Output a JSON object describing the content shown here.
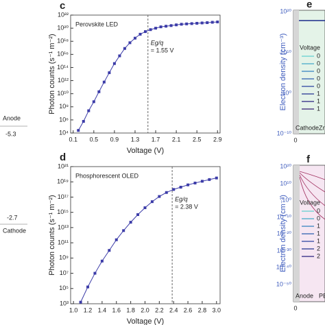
{
  "chart_data": [
    {
      "type": "line",
      "panel": "c",
      "annotations": [
        "Perovskite LED",
        "Eg/q",
        "= 1.55 V"
      ],
      "x_label": "Voltage (V)",
      "y_label": "Photon counts (s⁻¹ m⁻²)",
      "log_y": true,
      "marker_line": 1.55,
      "x": [
        0.2,
        0.3,
        0.4,
        0.5,
        0.6,
        0.7,
        0.8,
        0.9,
        1.0,
        1.1,
        1.2,
        1.3,
        1.4,
        1.5,
        1.6,
        1.7,
        1.8,
        1.9,
        2.0,
        2.1,
        2.2,
        2.3,
        2.4,
        2.5,
        2.6,
        2.7,
        2.8,
        2.9
      ],
      "series": [
        {
          "color": "#3c3ca8",
          "values": [
            25000.0,
            600000.0,
            25000000.0,
            600000000.0,
            20000000000.0,
            600000000000.0,
            16000000000000.0,
            400000000000000.0,
            6000000000000000.0,
            8e+16,
            6e+17,
            3e+18,
            1.2e+19,
            3e+19,
            6e+19,
            1e+20,
            1.6e+20,
            2e+20,
            2.5e+20,
            3.2e+20,
            4e+20,
            4.5e+20,
            5e+20,
            5.6e+20,
            6.3e+20,
            7e+20,
            8e+20,
            9e+20
          ]
        }
      ],
      "xlim": [
        0.05,
        2.95
      ],
      "xticks": [
        0.1,
        0.5,
        0.9,
        1.3,
        1.7,
        2.1,
        2.5,
        2.9
      ],
      "ylim": [
        10000.0,
        1e+22
      ],
      "yticks": [
        {
          "value": 10000.0,
          "label": "10⁴"
        },
        {
          "value": 1000000.0,
          "label": "10⁶"
        },
        {
          "value": 100000000.0,
          "label": "10⁸"
        },
        {
          "value": 10000000000.0,
          "label": "10¹⁰"
        },
        {
          "value": 1000000000000.0,
          "label": "10¹²"
        },
        {
          "value": 100000000000000.0,
          "label": "10¹⁴"
        },
        {
          "value": 1e+16,
          "label": "10¹⁶"
        },
        {
          "value": 1e+18,
          "label": "10¹⁸"
        },
        {
          "value": 1e+20,
          "label": "10²⁰"
        },
        {
          "value": 1e+22,
          "label": "10²²"
        }
      ]
    },
    {
      "type": "line",
      "panel": "d",
      "annotations": [
        "Phosphorescent OLED",
        "Eg/q",
        "= 2.38 V"
      ],
      "x_label": "Voltage (V)",
      "y_label": "Photon counts (s⁻¹ m⁻²)",
      "log_y": true,
      "marker_line": 2.38,
      "x": [
        1.1,
        1.2,
        1.3,
        1.4,
        1.5,
        1.6,
        1.7,
        1.8,
        1.9,
        2.0,
        2.1,
        2.2,
        2.3,
        2.4,
        2.5,
        2.6,
        2.7,
        2.8,
        2.9,
        3.0
      ],
      "series": [
        {
          "color": "#3c3ca8",
          "values": [
            1600.0,
            160000.0,
            10000000.0,
            400000000.0,
            10000000000.0,
            250000000000.0,
            4000000000000.0,
            50000000000000.0,
            500000000000000.0,
            4000000000000000.0,
            2.5e+16,
            1.2e+17,
            4e+17,
            1e+18,
            2e+18,
            4e+18,
            7e+18,
            1.2e+19,
            2e+19,
            3.2e+19
          ]
        }
      ],
      "xlim": [
        0.96,
        3.05
      ],
      "xticks": [
        {
          "value": 1,
          "label": "1.0"
        },
        1.2,
        1.4,
        1.6,
        1.8,
        {
          "value": 2,
          "label": "2.0"
        },
        2.2,
        2.4,
        2.6,
        2.8,
        {
          "value": 3,
          "label": "3.0"
        }
      ],
      "ylim": [
        1000.0,
        1e+21
      ],
      "yticks": [
        {
          "value": 1000.0,
          "label": "10³"
        },
        {
          "value": 100000.0,
          "label": "10⁵"
        },
        {
          "value": 10000000.0,
          "label": "10⁷"
        },
        {
          "value": 1000000000.0,
          "label": "10⁹"
        },
        {
          "value": 100000000000.0,
          "label": "10¹¹"
        },
        {
          "value": 10000000000000.0,
          "label": "10¹³"
        },
        {
          "value": 1000000000000000.0,
          "label": "10¹⁵"
        },
        {
          "value": 1e+17,
          "label": "10¹⁷"
        },
        {
          "value": 1e+19,
          "label": "10¹⁹"
        },
        {
          "value": 1e+21,
          "label": "10²¹"
        }
      ]
    }
  ],
  "panel_e": {
    "label": "e",
    "y_label": "Electron density (cm⁻³)",
    "yticks": [
      "10²⁰",
      "10¹⁰",
      "10⁰",
      "10⁻¹⁰"
    ],
    "xtick": "0",
    "legend_title": "Voltage",
    "legend": [
      "0",
      "0",
      "0",
      "0",
      "0",
      "1",
      "1",
      "1"
    ],
    "regions": [
      "Cathode",
      "Zn"
    ]
  },
  "panel_f": {
    "label": "f",
    "y_label": "Electron density (cm⁻³)",
    "yticks": [
      "10²⁰",
      "10¹⁰",
      "10⁰",
      "10⁻¹⁰",
      "10⁻²⁰",
      "10⁻³⁰",
      "10⁻⁴⁰",
      "10⁻⁵⁰"
    ],
    "xtick": "0",
    "legend_title": "Voltage",
    "legend": [
      "0",
      "0",
      "1",
      "1",
      "1",
      "2",
      "2"
    ],
    "regions": [
      "Anode",
      "PEDO"
    ]
  },
  "left": {
    "top_label": "Anode",
    "top_value": "-5.3",
    "bottom_value": "-2.7",
    "bottom_label": "Cathode"
  }
}
